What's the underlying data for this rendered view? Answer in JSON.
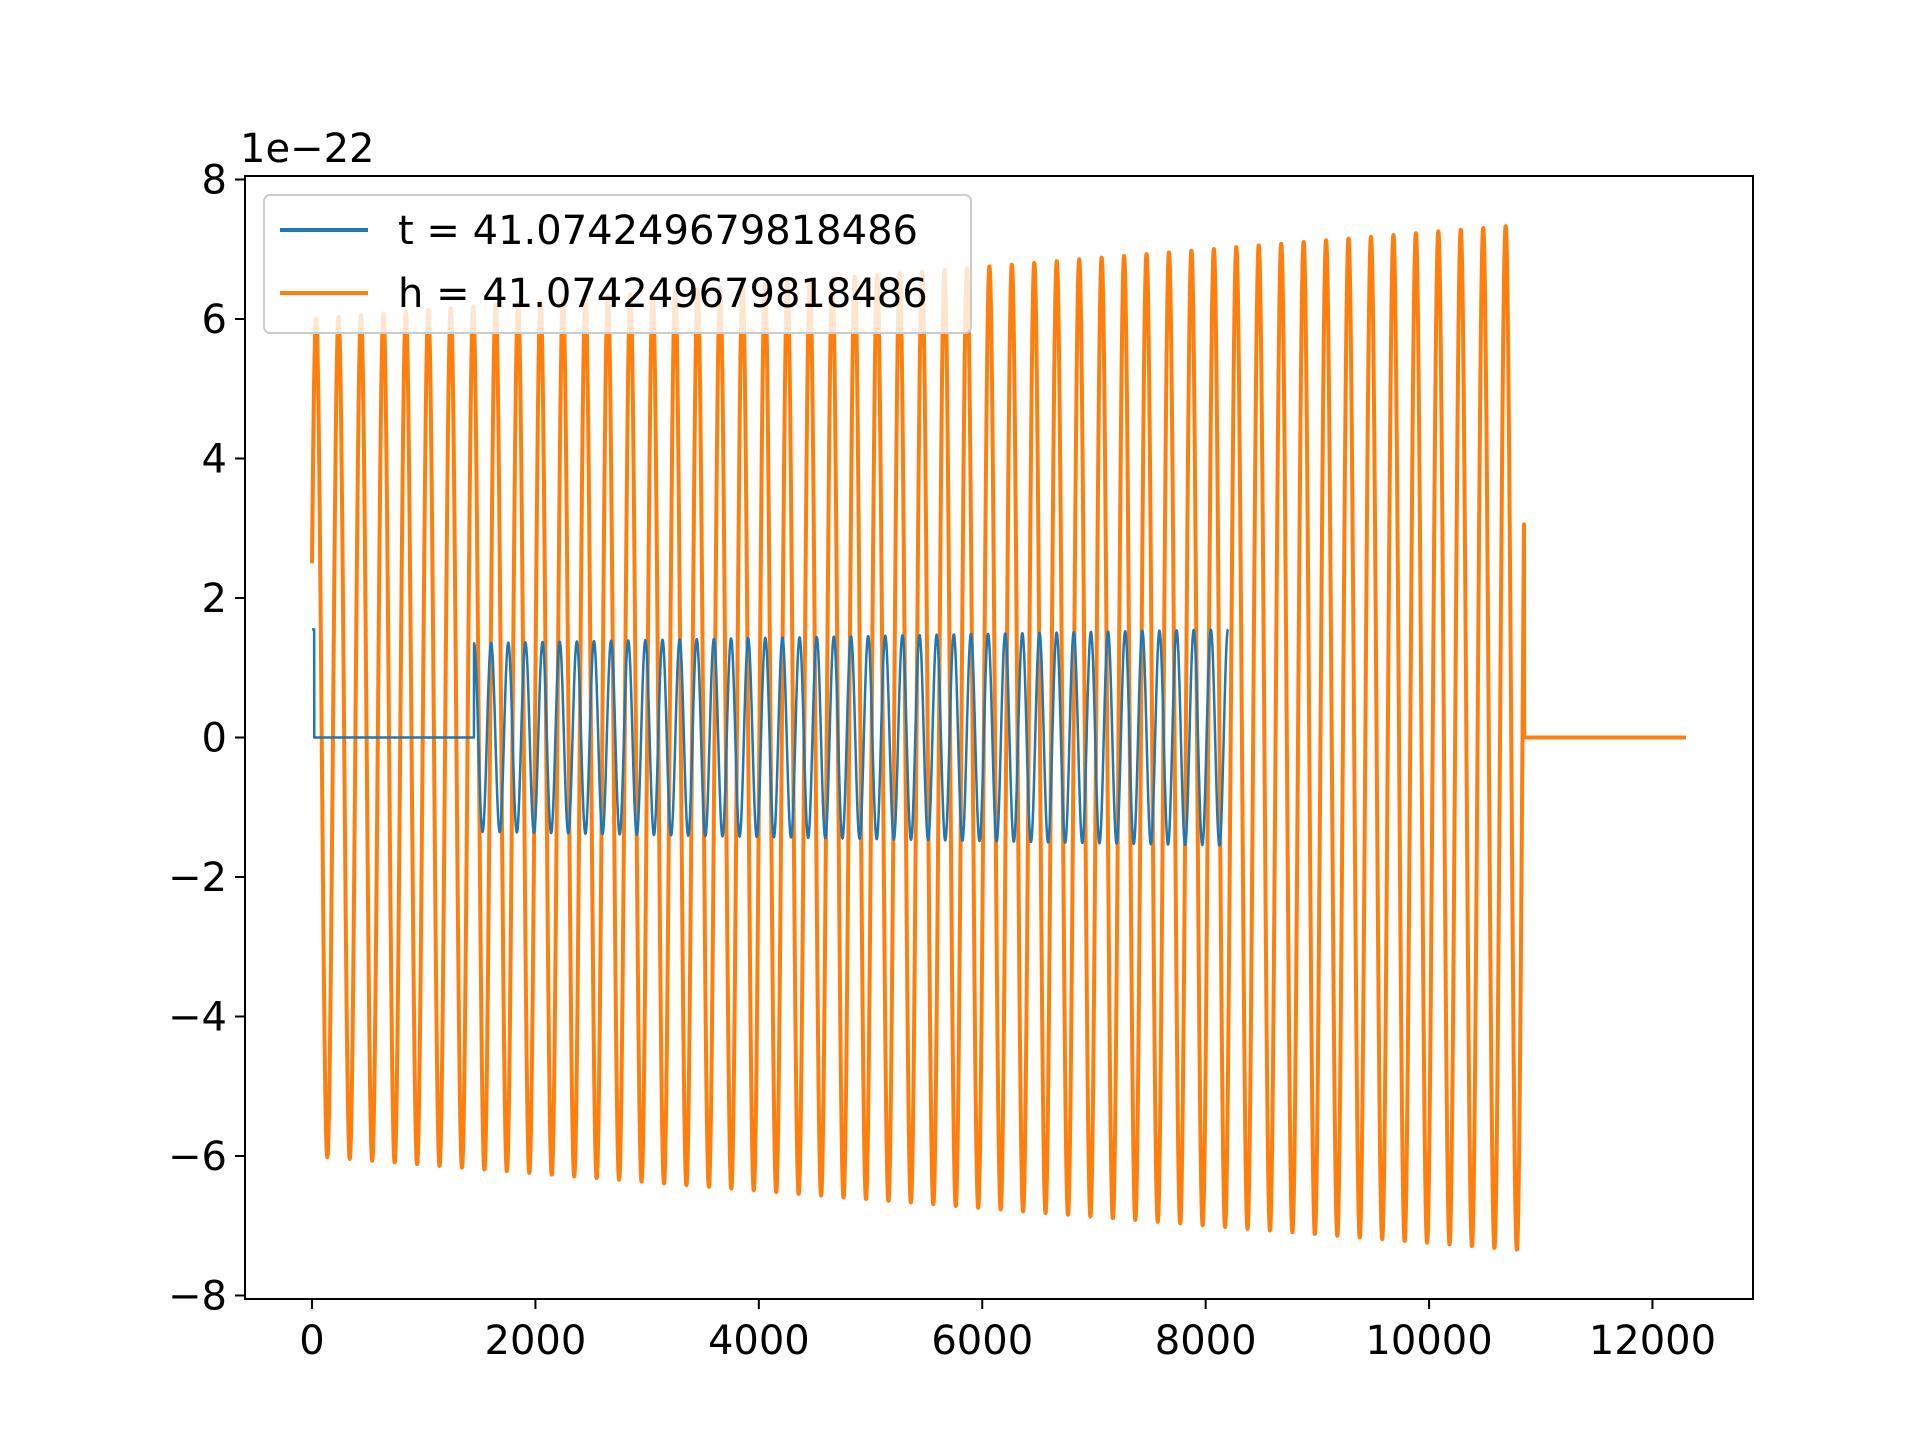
{
  "chart_data": {
    "type": "line",
    "title": "",
    "xlabel": "",
    "ylabel": "",
    "offset_label": "1e−22",
    "xlim": [
      -600,
      12900
    ],
    "ylim": [
      -8.05,
      8.05
    ],
    "x_ticks": [
      0,
      2000,
      4000,
      6000,
      8000,
      10000,
      12000
    ],
    "x_tick_labels": [
      "0",
      "2000",
      "4000",
      "6000",
      "8000",
      "10000",
      "12000"
    ],
    "y_ticks": [
      -8,
      -6,
      -4,
      -2,
      0,
      2,
      4,
      6,
      8
    ],
    "y_tick_labels": [
      "−8",
      "−6",
      "−4",
      "−2",
      "0",
      "2",
      "4",
      "6",
      "8"
    ],
    "grid": false,
    "legend_position": "upper-left",
    "series": [
      {
        "name": "t = 41.074249679818486",
        "color": "#1f77b4",
        "x_range": [
          0,
          8200
        ],
        "start_value": 1.55,
        "silent_until": 1450,
        "amplitude_start": 1.35,
        "amplitude_end": 1.55,
        "oscillation_start": 1450,
        "oscillation_end": 8200,
        "cycles": 44,
        "units_scale": "1e-22"
      },
      {
        "name": "h = 41.074249679818486",
        "color": "#ff7f0e",
        "x_range": [
          0,
          12300
        ],
        "start_value": 2.5,
        "amplitude_start": 6.0,
        "amplitude_end": 7.35,
        "oscillation_start": 0,
        "oscillation_end": 10850,
        "cycles": 54,
        "zero_after": 10850,
        "units_scale": "1e-22"
      }
    ]
  }
}
